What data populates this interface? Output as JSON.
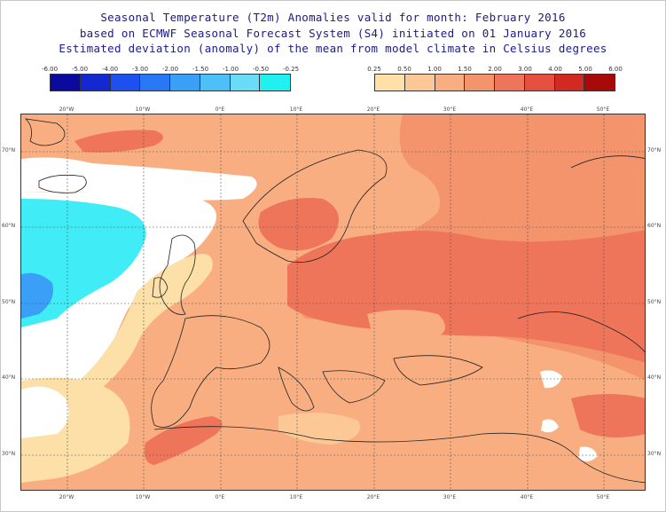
{
  "titles": {
    "line1": "Seasonal Temperature (T2m) Anomalies valid for month: February 2016",
    "line2": "based on ECMWF Seasonal Forecast System (S4) initiated on 01 January 2016",
    "line3": "Estimated deviation (anomaly) of the mean from model climate in Celsius degrees"
  },
  "legend_cold": {
    "labels": [
      "-6.00",
      "-5.00",
      "-4.00",
      "-3.00",
      "-2.00",
      "-1.50",
      "-1.00",
      "-0.50",
      "-0.25"
    ],
    "colors": [
      "#0a0a9e",
      "#1428d2",
      "#1e50f0",
      "#2878f5",
      "#3aa0f7",
      "#4ec0f8",
      "#6adcfa",
      "#20f0f0"
    ]
  },
  "legend_warm": {
    "labels": [
      "0.25",
      "0.50",
      "1.00",
      "1.50",
      "2.00",
      "3.00",
      "4.00",
      "5.00",
      "6.00"
    ],
    "colors": [
      "#ffe0a8",
      "#fcc896",
      "#f8ae80",
      "#f3946c",
      "#ee745a",
      "#e6503f",
      "#d02a22",
      "#a80a0a"
    ]
  },
  "map_colors": {
    "white": "#ffffff",
    "lightcyan": "#40ecf5",
    "cyan": "#20d8f0",
    "blue": "#3aa0f7",
    "yellow": "#fde0a8",
    "peach": "#fcc896",
    "orange": "#f8ae80",
    "redorange": "#f3946c",
    "red": "#ee745a",
    "coast": "#222222"
  },
  "axes": {
    "lon_labels": [
      "20°W",
      "10°W",
      "0°E",
      "10°E",
      "20°E",
      "30°E",
      "40°E",
      "50°E"
    ],
    "lat_labels": [
      "70°N",
      "60°N",
      "50°N",
      "40°N",
      "30°N"
    ]
  }
}
